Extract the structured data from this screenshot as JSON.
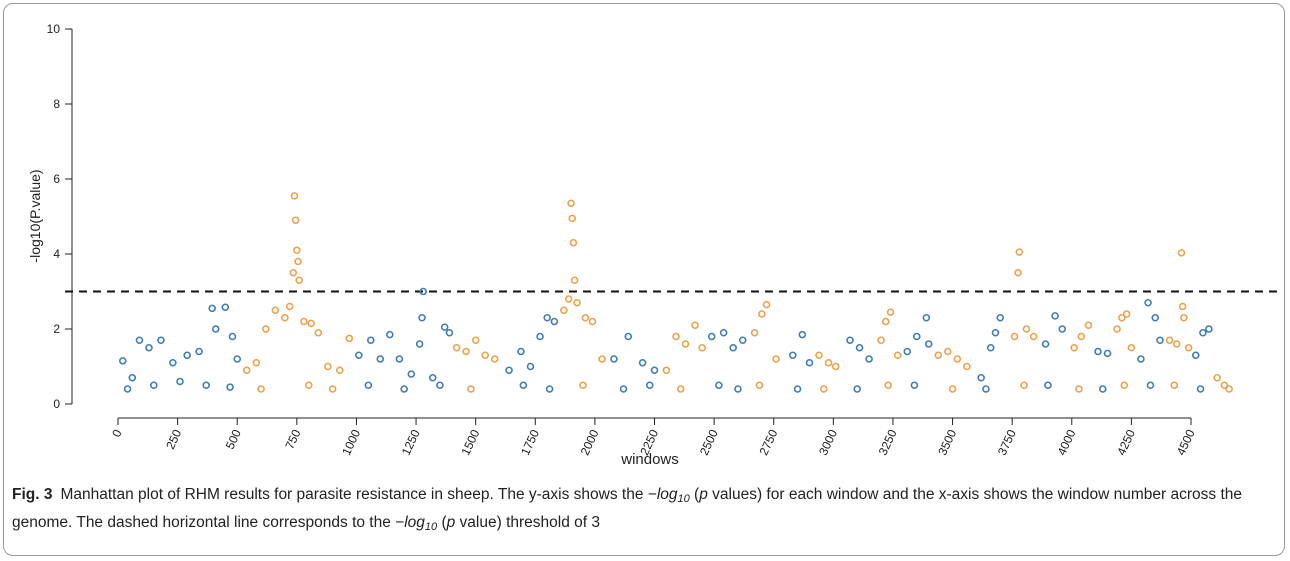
{
  "chart_data": {
    "type": "scatter",
    "xlabel": "windows",
    "ylabel": "-log10(P.value)",
    "xlim": [
      0,
      4500
    ],
    "ylim": [
      0,
      10
    ],
    "xticks": [
      0,
      250,
      500,
      750,
      1000,
      1250,
      1500,
      1750,
      2000,
      2250,
      2500,
      2750,
      3000,
      3250,
      3500,
      3750,
      4000,
      4250,
      4500
    ],
    "yticks": [
      0,
      2,
      4,
      6,
      8,
      10
    ],
    "threshold": 3,
    "series": [
      {
        "color": "#3f7db5",
        "x": [
          20,
          60,
          90,
          130,
          180,
          230,
          290,
          340,
          395,
          410,
          450,
          480,
          500,
          40,
          150,
          260,
          370,
          470,
          1010,
          1060,
          1100,
          1140,
          1180,
          1230,
          1265,
          1280,
          1275,
          1320,
          1370,
          1390,
          1050,
          1200,
          1350,
          1640,
          1690,
          1730,
          1770,
          1800,
          1830,
          1700,
          1810,
          2080,
          2140,
          2200,
          2250,
          2120,
          2230,
          2490,
          2540,
          2580,
          2620,
          2520,
          2600,
          2830,
          2870,
          2900,
          2850,
          3070,
          3110,
          3150,
          3100,
          3310,
          3350,
          3390,
          3400,
          3340,
          3620,
          3660,
          3700,
          3680,
          3640,
          3890,
          3930,
          3960,
          3900,
          4110,
          4150,
          4130,
          4290,
          4320,
          4350,
          4370,
          4330,
          4520,
          4550,
          4575,
          4540
        ],
        "values": [
          1.15,
          0.7,
          1.7,
          1.5,
          1.7,
          1.1,
          1.3,
          1.4,
          2.55,
          2.0,
          2.58,
          1.8,
          1.2,
          0.4,
          0.5,
          0.6,
          0.5,
          0.45,
          1.3,
          1.7,
          1.2,
          1.85,
          1.2,
          0.8,
          1.6,
          3.0,
          2.3,
          0.7,
          2.05,
          1.9,
          0.5,
          0.4,
          0.5,
          0.9,
          1.4,
          1.0,
          1.8,
          2.3,
          2.2,
          0.5,
          0.4,
          1.2,
          1.8,
          1.1,
          0.9,
          0.4,
          0.5,
          1.8,
          1.9,
          1.5,
          1.7,
          0.5,
          0.4,
          1.3,
          1.85,
          1.1,
          0.4,
          1.7,
          1.5,
          1.2,
          0.4,
          1.4,
          1.8,
          2.3,
          1.6,
          0.5,
          0.7,
          1.5,
          2.3,
          1.9,
          0.4,
          1.6,
          2.35,
          2.0,
          0.5,
          1.4,
          1.35,
          0.4,
          1.2,
          2.7,
          2.3,
          1.7,
          0.5,
          1.3,
          1.9,
          2.0,
          0.4
        ]
      },
      {
        "color": "#f0a04b",
        "x": [
          540,
          580,
          620,
          660,
          700,
          720,
          735,
          740,
          745,
          750,
          755,
          760,
          780,
          810,
          840,
          880,
          930,
          970,
          600,
          800,
          900,
          1420,
          1460,
          1500,
          1540,
          1580,
          1480,
          1870,
          1890,
          1900,
          1905,
          1910,
          1915,
          1925,
          1960,
          1990,
          2030,
          1950,
          2300,
          2340,
          2380,
          2420,
          2450,
          2360,
          2670,
          2700,
          2720,
          2760,
          2690,
          2940,
          2980,
          3010,
          2960,
          3200,
          3220,
          3240,
          3270,
          3230,
          3440,
          3480,
          3520,
          3560,
          3500,
          3760,
          3775,
          3780,
          3810,
          3840,
          3800,
          4010,
          4040,
          4070,
          4030,
          4190,
          4210,
          4230,
          4250,
          4220,
          4410,
          4440,
          4460,
          4465,
          4470,
          4490,
          4430,
          4610,
          4640,
          4660
        ],
        "values": [
          0.9,
          1.1,
          2.0,
          2.5,
          2.3,
          2.6,
          3.5,
          5.55,
          4.9,
          4.1,
          3.8,
          3.3,
          2.2,
          2.15,
          1.9,
          1.0,
          0.9,
          1.75,
          0.4,
          0.5,
          0.4,
          1.5,
          1.4,
          1.7,
          1.3,
          1.2,
          0.4,
          2.5,
          2.8,
          5.35,
          4.95,
          4.3,
          3.3,
          2.7,
          2.3,
          2.2,
          1.2,
          0.5,
          0.9,
          1.8,
          1.6,
          2.1,
          1.5,
          0.4,
          1.9,
          2.4,
          2.65,
          1.2,
          0.5,
          1.3,
          1.1,
          1.0,
          0.4,
          1.7,
          2.2,
          2.45,
          1.3,
          0.5,
          1.3,
          1.4,
          1.2,
          1.0,
          0.4,
          1.8,
          3.5,
          4.05,
          2.0,
          1.8,
          0.5,
          1.5,
          1.8,
          2.1,
          0.4,
          2.0,
          2.3,
          2.4,
          1.5,
          0.5,
          1.7,
          1.6,
          4.03,
          2.6,
          2.3,
          1.5,
          0.5,
          0.7,
          0.5,
          0.4
        ]
      }
    ]
  },
  "caption": {
    "label": "Fig. 3",
    "parts": [
      {
        "text": "Manhattan plot of RHM results for parasite resistance in sheep. The y-axis shows the −",
        "style": "normal"
      },
      {
        "text": "log",
        "style": "italic"
      },
      {
        "text": "10",
        "style": "sub"
      },
      {
        "text": " (",
        "style": "normal"
      },
      {
        "text": "p",
        "style": "italic"
      },
      {
        "text": " values) for each window and the x-axis shows the window number across the genome. The dashed horizontal line corresponds to the −",
        "style": "normal"
      },
      {
        "text": "log",
        "style": "italic"
      },
      {
        "text": "10",
        "style": "sub"
      },
      {
        "text": " (",
        "style": "normal"
      },
      {
        "text": "p",
        "style": "italic"
      },
      {
        "text": " value) threshold of 3",
        "style": "normal"
      }
    ]
  }
}
